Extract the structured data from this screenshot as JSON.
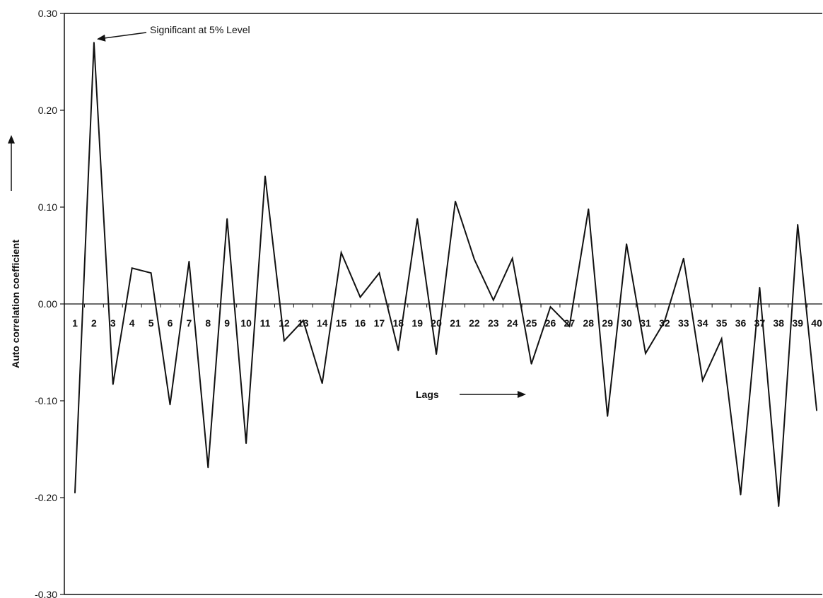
{
  "chart_data": {
    "type": "line",
    "title": "",
    "xlabel": "Lags",
    "ylabel": "Auto correlation coefficient",
    "ylim": [
      -0.3,
      0.3
    ],
    "yticks": [
      "0.30",
      "0.20",
      "0.10",
      "0.00",
      "-0.10",
      "-0.20",
      "-0.30"
    ],
    "grid": false,
    "legend": "none",
    "x": [
      1,
      2,
      3,
      4,
      5,
      6,
      7,
      8,
      9,
      10,
      11,
      12,
      13,
      14,
      15,
      16,
      17,
      18,
      19,
      20,
      21,
      22,
      23,
      24,
      25,
      26,
      27,
      28,
      29,
      30,
      31,
      32,
      33,
      34,
      35,
      36,
      37,
      38,
      39,
      40
    ],
    "xtick_labels": [
      "1",
      "2",
      "3",
      "4",
      "5",
      "6",
      "7",
      "8",
      "9",
      "10",
      "11",
      "12",
      "13",
      "14",
      "15",
      "16",
      "17",
      "18",
      "19",
      "20",
      "21",
      "22",
      "23",
      "24",
      "25",
      "26",
      "27",
      "28",
      "29",
      "30",
      "31",
      "32",
      "33",
      "34",
      "35",
      "36",
      "37",
      "38",
      "39",
      "40"
    ],
    "series": [
      {
        "values": [
          -0.195,
          0.27,
          -0.083,
          0.037,
          0.032,
          -0.104,
          0.044,
          -0.169,
          0.088,
          -0.144,
          0.132,
          -0.038,
          -0.017,
          -0.082,
          0.053,
          0.007,
          0.032,
          -0.048,
          0.088,
          -0.052,
          0.106,
          0.046,
          0.004,
          0.047,
          -0.062,
          -0.003,
          -0.023,
          0.098,
          -0.116,
          0.062,
          -0.051,
          -0.018,
          0.047,
          -0.079,
          -0.036,
          -0.197,
          0.017,
          -0.209,
          0.082,
          -0.11
        ]
      }
    ],
    "annotations": [
      {
        "text": "Significant at 5% Level",
        "x": 2,
        "y": 0.27
      }
    ]
  },
  "colors": {
    "line": "#111111",
    "axis": "#111111",
    "background": "#ffffff"
  }
}
